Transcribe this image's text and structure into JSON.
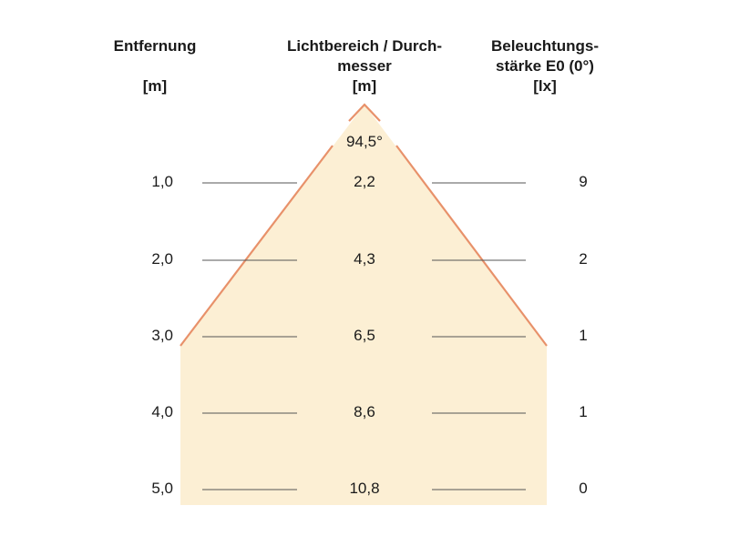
{
  "headers": {
    "distance": {
      "line1": "Entfernung",
      "unit": "[m]"
    },
    "beam": {
      "line1": "Lichtbereich / Durch-",
      "line2": "messer",
      "unit": "[m]"
    },
    "illuminance": {
      "line1": "Beleuchtungs-",
      "line2": "stärke E0 (0°)",
      "unit": "[lx]"
    }
  },
  "beam_angle": "94,5°",
  "rows": [
    {
      "distance": "1,0",
      "diameter": "2,2",
      "illuminance": "9"
    },
    {
      "distance": "2,0",
      "diameter": "4,3",
      "illuminance": "2"
    },
    {
      "distance": "3,0",
      "diameter": "6,5",
      "illuminance": "1"
    },
    {
      "distance": "4,0",
      "diameter": "8,6",
      "illuminance": "1"
    },
    {
      "distance": "5,0",
      "diameter": "10,8",
      "illuminance": "0"
    }
  ],
  "colors": {
    "beam_fill": "#fcefd4",
    "beam_edge": "#e8916a",
    "row_line": "#555555"
  }
}
